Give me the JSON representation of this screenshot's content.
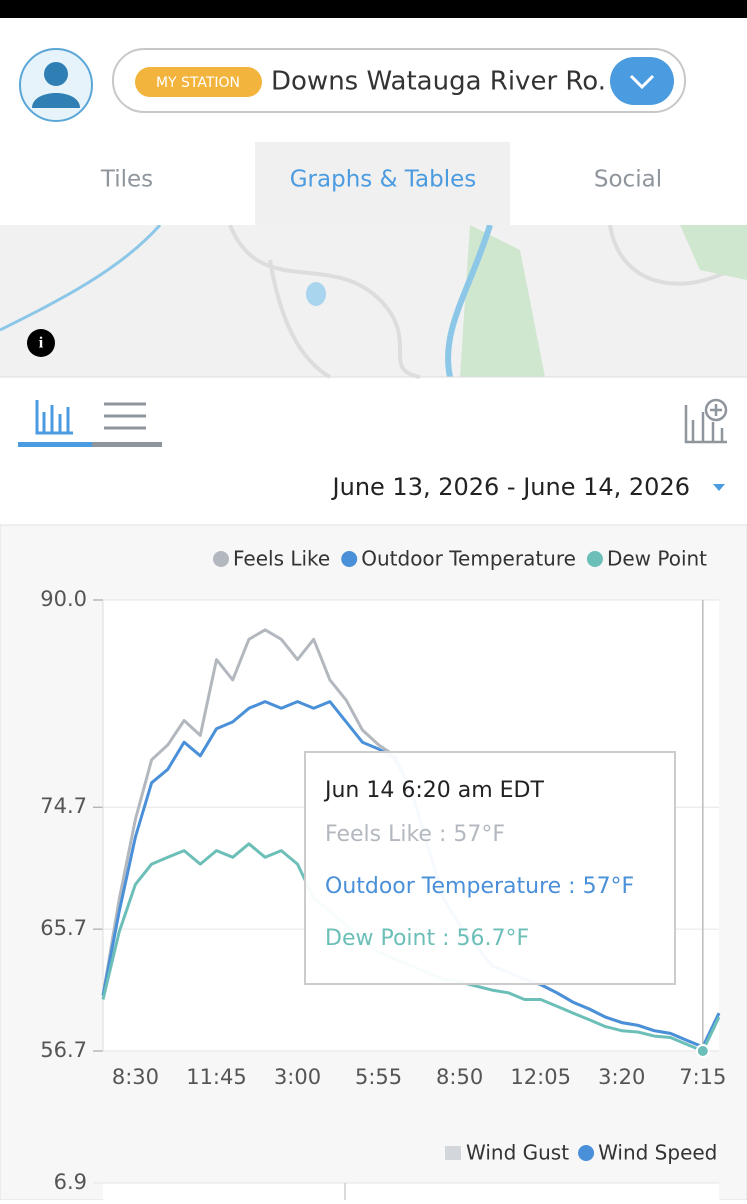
{
  "header": {
    "badge": "MY STATION",
    "station": "Downs Watauga River Ro."
  },
  "tabs": [
    "Tiles",
    "Graphs & Tables",
    "Social"
  ],
  "date_range": "June 13, 2026 - June 14, 2026",
  "chart_data": {
    "type": "line",
    "categories": [
      null,
      null,
      "8:30",
      null,
      null,
      null,
      null,
      "11:45",
      null,
      null,
      null,
      null,
      "3:00",
      null,
      null,
      null,
      null,
      "5:55",
      null,
      null,
      null,
      null,
      "8:50",
      null,
      null,
      null,
      null,
      "12:05",
      null,
      null,
      null,
      null,
      "3:20",
      null,
      null,
      null,
      null,
      "7:15",
      null
    ],
    "series": [
      {
        "name": "Feels Like",
        "color": "#b3b8bf",
        "values": [
          60.8,
          67.9,
          73.8,
          78.2,
          79.3,
          81.1,
          80.0,
          85.6,
          84.1,
          87.1,
          87.8,
          87.1,
          85.6,
          87.1,
          84.1,
          82.6,
          80.4,
          79.3,
          78.5,
          76,
          72,
          68,
          66,
          64.5,
          63,
          62.5,
          62,
          61.6,
          61,
          60.3,
          59.8,
          59.2,
          58.8,
          58.6,
          58.2,
          58.0,
          57.5,
          57.0,
          59.5
        ]
      },
      {
        "name": "Outdoor Temperature",
        "color": "#4a90d9",
        "values": [
          60.8,
          67,
          72.5,
          76.5,
          77.5,
          79.5,
          78.5,
          80.5,
          81,
          82,
          82.5,
          82,
          82.5,
          82,
          82.5,
          81,
          79.5,
          79,
          78.3,
          76,
          72,
          68,
          66,
          64.5,
          63,
          62.5,
          62,
          61.6,
          61,
          60.3,
          59.8,
          59.2,
          58.8,
          58.6,
          58.2,
          58.0,
          57.5,
          57.0,
          59.5
        ]
      },
      {
        "name": "Dew Point",
        "color": "#6cbfb8",
        "values": [
          60.5,
          65.5,
          69,
          70.5,
          71,
          71.5,
          70.5,
          71.5,
          71,
          72,
          71,
          71.5,
          70.5,
          68,
          67,
          66,
          65,
          64,
          63.5,
          63,
          62.5,
          62,
          61.8,
          61.5,
          61.2,
          61,
          60.5,
          60.5,
          60,
          59.5,
          59,
          58.5,
          58.2,
          58.1,
          57.8,
          57.7,
          57.2,
          56.7,
          59.2
        ]
      }
    ],
    "ylim": [
      56.7,
      90.0
    ],
    "yticks": [
      56.7,
      65.7,
      74.7,
      {
        "value": 90.0,
        "label": "90.0"
      }
    ],
    "grid": true,
    "tooltip": {
      "title": "Jun 14 6:20 am EDT",
      "lines": [
        "Feels Like : 57°F",
        "Outdoor Temperature : 57°F",
        "Dew Point : 56.7°F"
      ]
    }
  },
  "wind_chart": {
    "series": [
      {
        "name": "Wind Gust",
        "color": "#d3d7db"
      },
      {
        "name": "Wind Speed",
        "color": "#4a90d9"
      }
    ],
    "yticks": [
      6.9
    ]
  }
}
